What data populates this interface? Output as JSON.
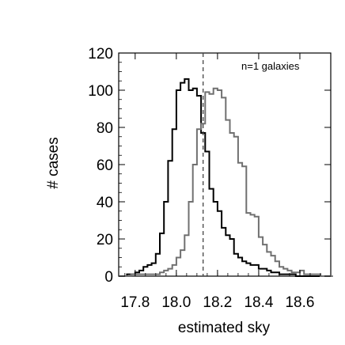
{
  "chart_data": {
    "type": "line",
    "step": true,
    "xlabel": "estimated sky",
    "ylabel": "# cases",
    "annotation": "n=1 galaxies",
    "xlim": [
      17.72,
      18.75
    ],
    "ylim": [
      0,
      120
    ],
    "xticks": [
      {
        "value": 17.8,
        "label": "17.8"
      },
      {
        "value": 18.0,
        "label": "18.0"
      },
      {
        "value": 18.2,
        "label": "18.2"
      },
      {
        "value": 18.4,
        "label": "18.4"
      },
      {
        "value": 18.6,
        "label": "18.6"
      }
    ],
    "yticks": [
      {
        "value": 0,
        "label": "0"
      },
      {
        "value": 20,
        "label": "20"
      },
      {
        "value": 40,
        "label": "40"
      },
      {
        "value": 60,
        "label": "60"
      },
      {
        "value": 80,
        "label": "80"
      },
      {
        "value": 100,
        "label": "100"
      },
      {
        "value": 120,
        "label": "120"
      }
    ],
    "grid": false,
    "reference_line": {
      "x": 18.13,
      "style": "dashed"
    },
    "bin_width": 0.02,
    "series": [
      {
        "color": "#000000",
        "bins_start": 17.72,
        "values": [
          0,
          0,
          1,
          1,
          2,
          3,
          5,
          6,
          7,
          12,
          23,
          40,
          62,
          79,
          100,
          104,
          106,
          100,
          101,
          97,
          77,
          67,
          47,
          40,
          35,
          26,
          22,
          20,
          12,
          10,
          8,
          7,
          6,
          6,
          4,
          4,
          3,
          2,
          2,
          1,
          1,
          1,
          1,
          0,
          0,
          0,
          0,
          0,
          0,
          0,
          0,
          0
        ]
      },
      {
        "color": "#707070",
        "bins_start": 17.72,
        "values": [
          0,
          0,
          0,
          1,
          1,
          1,
          1,
          1,
          1,
          1,
          2,
          3,
          4,
          6,
          10,
          14,
          22,
          40,
          60,
          79,
          82,
          99,
          98,
          101,
          100,
          96,
          84,
          77,
          75,
          61,
          59,
          34,
          33,
          32,
          21,
          17,
          13,
          11,
          8,
          5,
          4,
          3,
          2,
          2,
          3,
          1,
          1,
          1,
          1,
          0,
          0,
          0
        ]
      }
    ]
  }
}
